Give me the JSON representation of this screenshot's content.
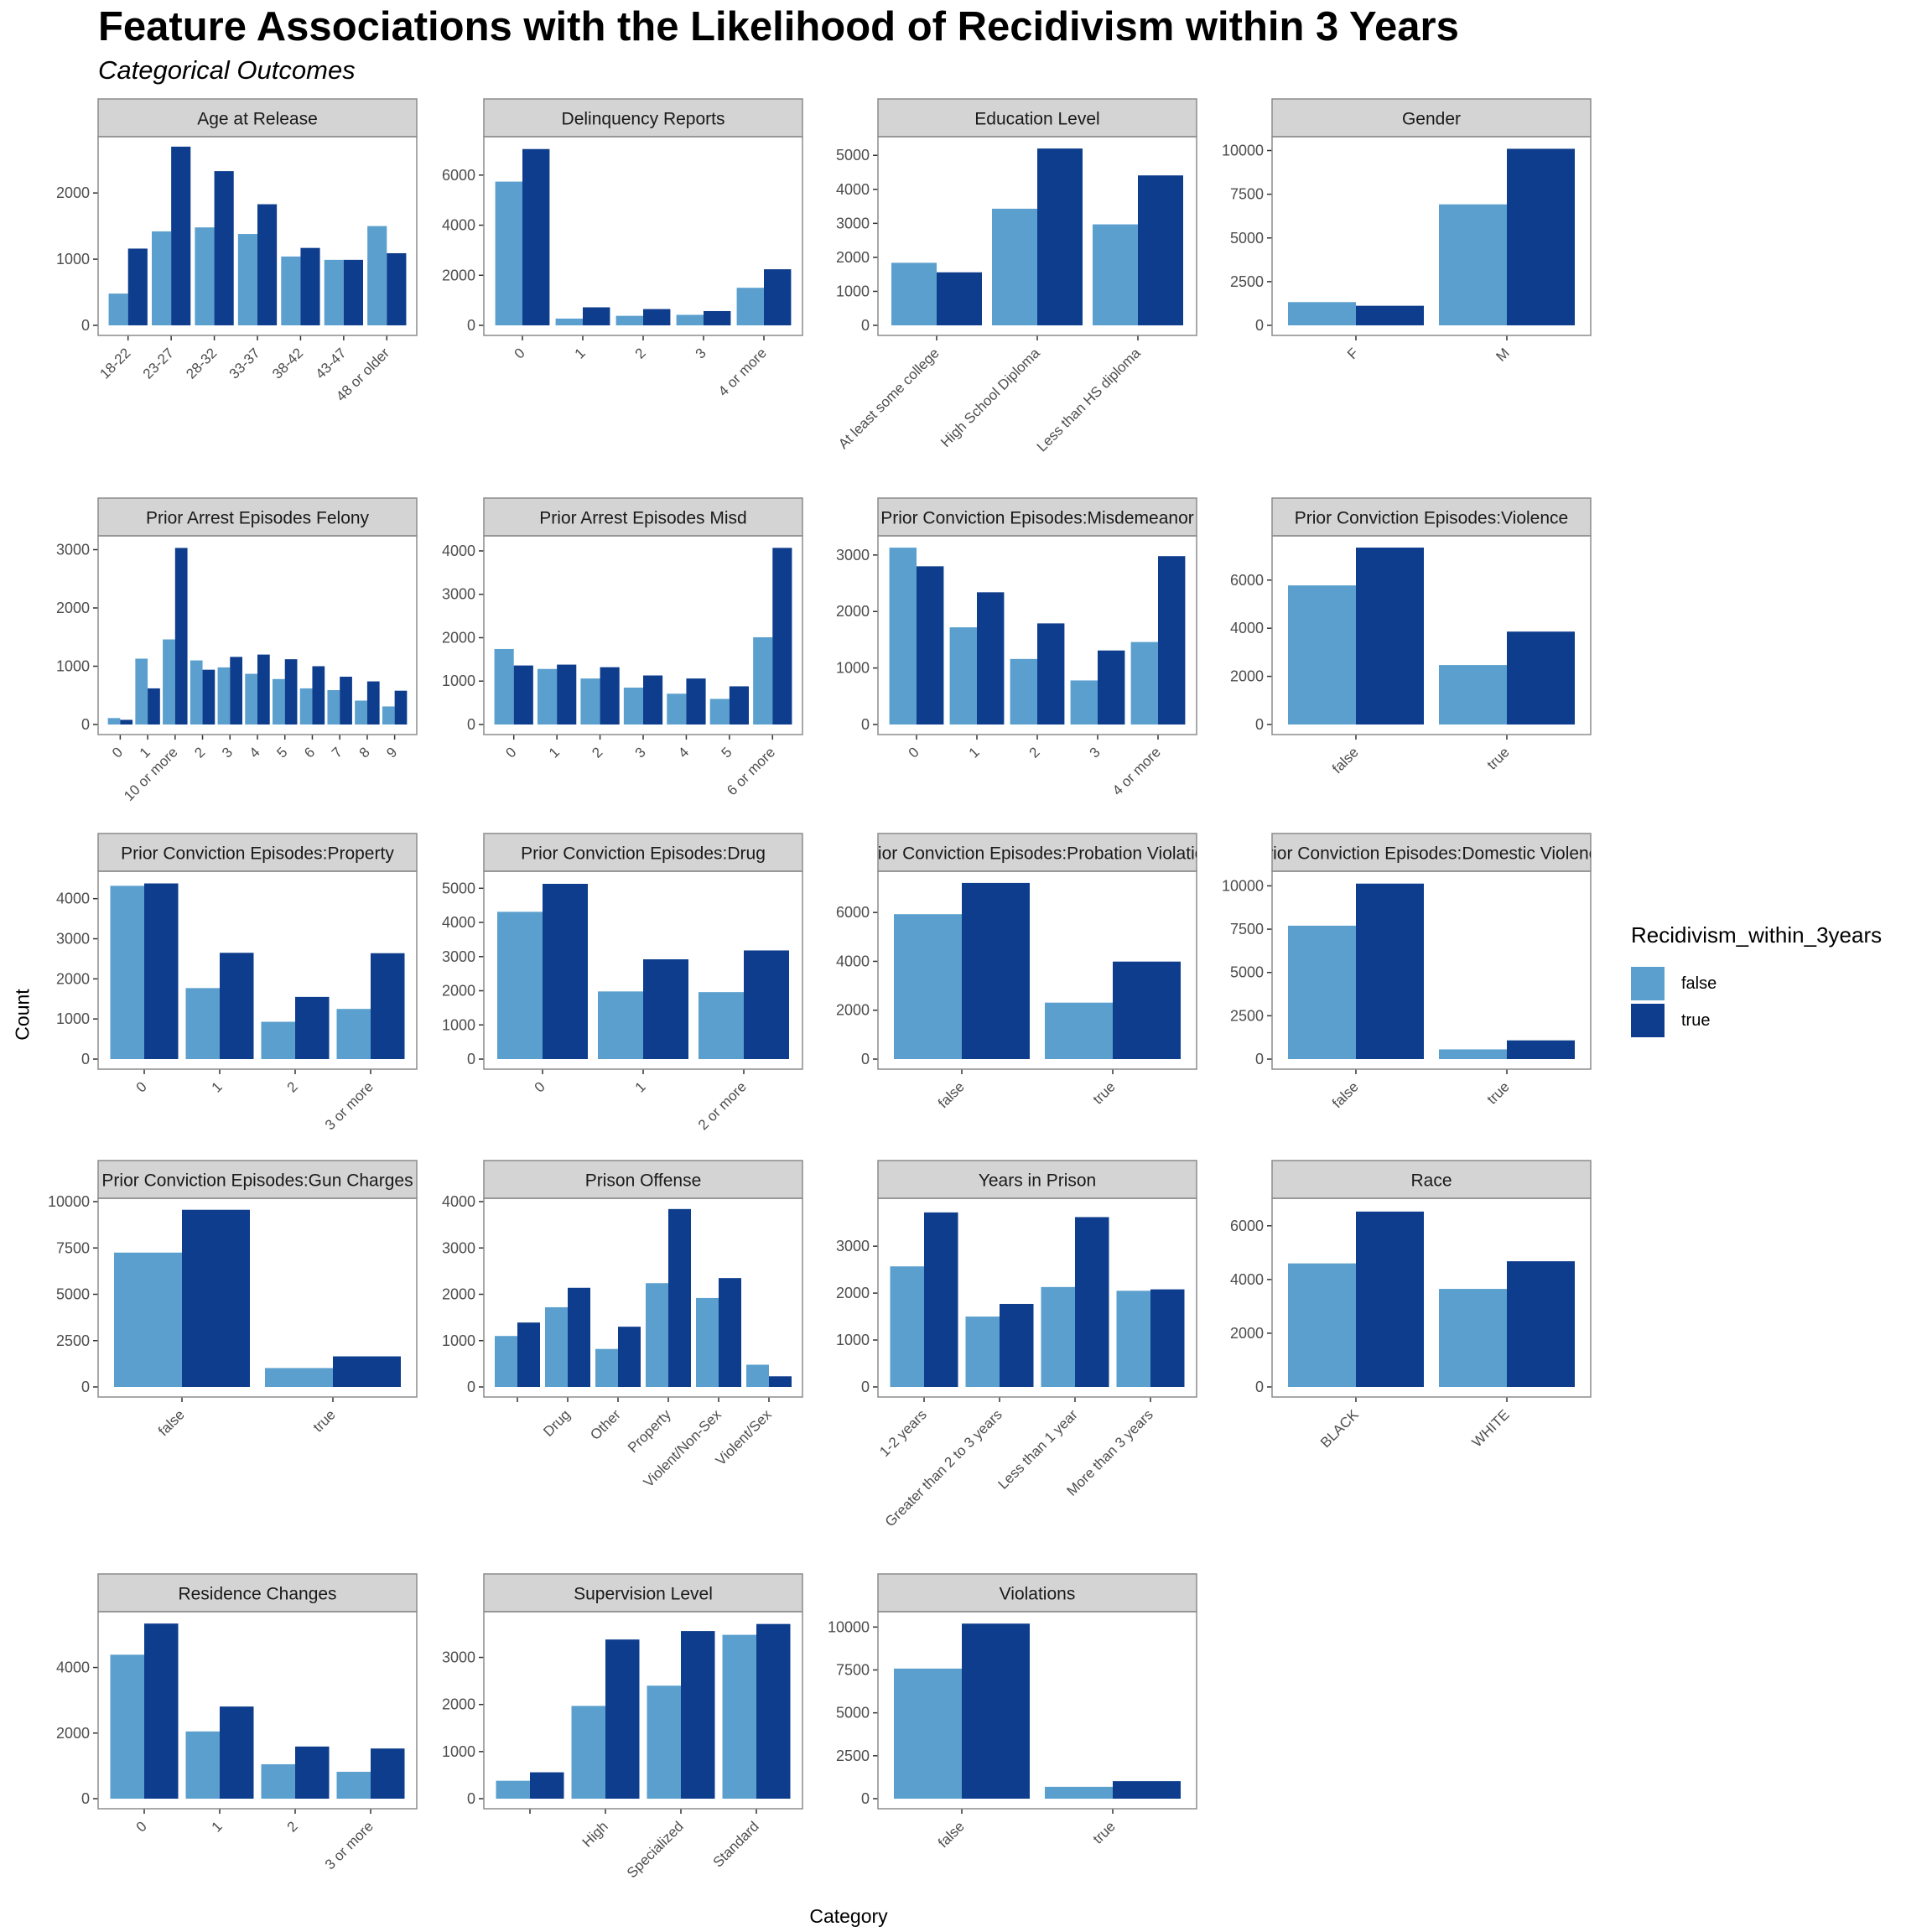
{
  "title": "Feature Associations with the Likelihood of Recidivism within 3 Years",
  "subtitle": "Categorical Outcomes",
  "xlabel": "Category",
  "ylabel": "Count",
  "legend": {
    "title": "Recidivism_within_3years",
    "items": [
      {
        "label": "false",
        "color": "#5a9fcd"
      },
      {
        "label": "true",
        "color": "#0d3d8c"
      }
    ]
  },
  "chart_data": {
    "type": "bar",
    "grid": false,
    "legend_position": "right",
    "facets": [
      {
        "title": "Age at Release",
        "categories": [
          "18-22",
          "23-27",
          "28-32",
          "33-37",
          "38-42",
          "43-47",
          "48 or older"
        ],
        "false": [
          480,
          1420,
          1480,
          1380,
          1040,
          990,
          1500
        ],
        "true": [
          1160,
          2700,
          2330,
          1830,
          1170,
          990,
          1090
        ],
        "ylim": [
          0,
          2800
        ],
        "yticks": [
          0,
          1000,
          2000
        ],
        "tick_labels": [
          "0",
          "1000",
          "2000"
        ],
        "rotate": true
      },
      {
        "title": "Delinquency Reports",
        "categories": [
          "0",
          "1",
          "2",
          "3",
          "4 or more"
        ],
        "false": [
          5740,
          270,
          380,
          420,
          1500
        ],
        "true": [
          7040,
          720,
          650,
          570,
          2240
        ],
        "ylim": [
          0,
          7400
        ],
        "yticks": [
          0,
          2000,
          4000,
          6000
        ],
        "tick_labels": [
          "0",
          "2000",
          "4000",
          "6000"
        ],
        "rotate": true
      },
      {
        "title": "Education Level",
        "categories": [
          "At least some college",
          "High School Diploma",
          "Less than HS diploma"
        ],
        "false": [
          1840,
          3430,
          2970
        ],
        "true": [
          1560,
          5200,
          4410
        ],
        "ylim": [
          0,
          5450
        ],
        "yticks": [
          0,
          1000,
          2000,
          3000,
          4000,
          5000
        ],
        "tick_labels": [
          "0",
          "1000",
          "2000",
          "3000",
          "4000",
          "5000"
        ],
        "rotate": true
      },
      {
        "title": "Gender",
        "categories": [
          "F",
          "M"
        ],
        "false": [
          1330,
          6920
        ],
        "true": [
          1120,
          10100
        ],
        "ylim": [
          0,
          10600
        ],
        "yticks": [
          0,
          2500,
          5000,
          7500,
          10000
        ],
        "tick_labels": [
          "0",
          "2500",
          "5000",
          "7500",
          "10000"
        ],
        "rotate": true
      },
      {
        "title": "Prior Arrest Episodes Felony",
        "categories": [
          "0",
          "1",
          "10 or more",
          "2",
          "3",
          "4",
          "5",
          "6",
          "7",
          "8",
          "9"
        ],
        "false": [
          110,
          1130,
          1460,
          1100,
          980,
          870,
          780,
          620,
          590,
          410,
          310
        ],
        "true": [
          80,
          620,
          3030,
          940,
          1160,
          1200,
          1120,
          1000,
          820,
          740,
          580
        ],
        "ylim": [
          0,
          3180
        ],
        "yticks": [
          0,
          1000,
          2000,
          3000
        ],
        "tick_labels": [
          "0",
          "1000",
          "2000",
          "3000"
        ],
        "rotate": true
      },
      {
        "title": "Prior Arrest Episodes Misd",
        "categories": [
          "0",
          "1",
          "2",
          "3",
          "4",
          "5",
          "6 or more"
        ],
        "false": [
          1740,
          1280,
          1060,
          850,
          710,
          590,
          2010
        ],
        "true": [
          1360,
          1380,
          1320,
          1130,
          1060,
          880,
          4070
        ],
        "ylim": [
          0,
          4270
        ],
        "yticks": [
          0,
          1000,
          2000,
          3000,
          4000
        ],
        "tick_labels": [
          "0",
          "1000",
          "2000",
          "3000",
          "4000"
        ],
        "rotate": true
      },
      {
        "title": "Prior Conviction Episodes:Misdemeanor",
        "categories": [
          "0",
          "1",
          "2",
          "3",
          "4 or more"
        ],
        "false": [
          3130,
          1720,
          1160,
          780,
          1460
        ],
        "true": [
          2800,
          2340,
          1790,
          1310,
          2980
        ],
        "ylim": [
          0,
          3280
        ],
        "yticks": [
          0,
          1000,
          2000,
          3000
        ],
        "tick_labels": [
          "0",
          "1000",
          "2000",
          "3000"
        ],
        "rotate": true
      },
      {
        "title": "Prior Conviction Episodes:Violence",
        "categories": [
          "false",
          "true"
        ],
        "false": [
          5780,
          2470
        ],
        "true": [
          7350,
          3860
        ],
        "ylim": [
          0,
          7700
        ],
        "yticks": [
          0,
          2000,
          4000,
          6000
        ],
        "tick_labels": [
          "0",
          "2000",
          "4000",
          "6000"
        ],
        "rotate": true
      },
      {
        "title": "Prior Conviction Episodes:Property",
        "categories": [
          "0",
          "1",
          "2",
          "3 or more"
        ],
        "false": [
          4320,
          1770,
          930,
          1250
        ],
        "true": [
          4380,
          2650,
          1550,
          2640
        ],
        "ylim": [
          0,
          4600
        ],
        "yticks": [
          0,
          1000,
          2000,
          3000,
          4000
        ],
        "tick_labels": [
          "0",
          "1000",
          "2000",
          "3000",
          "4000"
        ],
        "rotate": true
      },
      {
        "title": "Prior Conviction Episodes:Drug",
        "categories": [
          "0",
          "1",
          "2 or more"
        ],
        "false": [
          4310,
          1980,
          1960
        ],
        "true": [
          5130,
          2920,
          3180
        ],
        "ylim": [
          0,
          5400
        ],
        "yticks": [
          0,
          1000,
          2000,
          3000,
          4000,
          5000
        ],
        "tick_labels": [
          "0",
          "1000",
          "2000",
          "3000",
          "4000",
          "5000"
        ],
        "rotate": true
      },
      {
        "title": "Prior Conviction Episodes:Probation Violation",
        "categories": [
          "false",
          "true"
        ],
        "false": [
          5930,
          2310
        ],
        "true": [
          7210,
          3990
        ],
        "ylim": [
          0,
          7550
        ],
        "yticks": [
          0,
          2000,
          4000,
          6000
        ],
        "tick_labels": [
          "0",
          "2000",
          "4000",
          "6000"
        ],
        "rotate": true
      },
      {
        "title": "Prior Conviction Episodes:Domestic Violence",
        "categories": [
          "false",
          "true"
        ],
        "false": [
          7700,
          560
        ],
        "true": [
          10130,
          1080
        ],
        "ylim": [
          0,
          10650
        ],
        "yticks": [
          0,
          2500,
          5000,
          7500,
          10000
        ],
        "tick_labels": [
          "0",
          "2500",
          "5000",
          "7500",
          "10000"
        ],
        "rotate": true
      },
      {
        "title": "Prior Conviction Episodes:Gun Charges",
        "categories": [
          "false",
          "true"
        ],
        "false": [
          7250,
          1020
        ],
        "true": [
          9560,
          1650
        ],
        "ylim": [
          0,
          10000
        ],
        "yticks": [
          0,
          2500,
          5000,
          7500,
          10000
        ],
        "tick_labels": [
          "0",
          "2500",
          "5000",
          "7500",
          "10000"
        ],
        "rotate": true
      },
      {
        "title": "Prison Offense",
        "categories": [
          "",
          "Drug",
          "Other",
          "Property",
          "Violent/Non-Sex",
          "Violent/Sex"
        ],
        "false": [
          1100,
          1720,
          820,
          2240,
          1920,
          480
        ],
        "true": [
          1390,
          2140,
          1300,
          3840,
          2350,
          230
        ],
        "ylim": [
          0,
          4000
        ],
        "yticks": [
          0,
          1000,
          2000,
          3000,
          4000
        ],
        "tick_labels": [
          "0",
          "1000",
          "2000",
          "3000",
          "4000"
        ],
        "rotate": true
      },
      {
        "title": "Years in Prison",
        "categories": [
          "1-2 years",
          "Greater than 2 to 3 years",
          "Less than 1 year",
          "More than 3 years"
        ],
        "false": [
          2570,
          1500,
          2130,
          2050
        ],
        "true": [
          3720,
          1770,
          3620,
          2080
        ],
        "ylim": [
          0,
          3950
        ],
        "yticks": [
          0,
          1000,
          2000,
          3000
        ],
        "tick_labels": [
          "0",
          "1000",
          "2000",
          "3000"
        ],
        "rotate": true
      },
      {
        "title": "Race",
        "categories": [
          "BLACK",
          "WHITE"
        ],
        "false": [
          4600,
          3650
        ],
        "true": [
          6530,
          4680
        ],
        "ylim": [
          0,
          6900
        ],
        "yticks": [
          0,
          2000,
          4000,
          6000
        ],
        "tick_labels": [
          "0",
          "2000",
          "4000",
          "6000"
        ],
        "rotate": true
      },
      {
        "title": "Residence Changes",
        "categories": [
          "0",
          "1",
          "2",
          "3 or more"
        ],
        "false": [
          4390,
          2050,
          1050,
          820
        ],
        "true": [
          5340,
          2810,
          1590,
          1530
        ],
        "ylim": [
          0,
          5600
        ],
        "yticks": [
          0,
          2000,
          4000
        ],
        "tick_labels": [
          "0",
          "2000",
          "4000"
        ],
        "rotate": true
      },
      {
        "title": "Supervision Level",
        "categories": [
          "",
          "High",
          "Specialized",
          "Standard"
        ],
        "false": [
          380,
          1970,
          2400,
          3480
        ],
        "true": [
          560,
          3380,
          3560,
          3710
        ],
        "ylim": [
          0,
          3900
        ],
        "yticks": [
          0,
          1000,
          2000,
          3000
        ],
        "tick_labels": [
          "0",
          "1000",
          "2000",
          "3000"
        ],
        "rotate": true
      },
      {
        "title": "Violations",
        "categories": [
          "false",
          "true"
        ],
        "false": [
          7580,
          690
        ],
        "true": [
          10200,
          1020
        ],
        "ylim": [
          0,
          10700
        ],
        "yticks": [
          0,
          2500,
          5000,
          7500,
          10000
        ],
        "tick_labels": [
          "0",
          "2500",
          "5000",
          "7500",
          "10000"
        ],
        "rotate": true
      }
    ]
  }
}
